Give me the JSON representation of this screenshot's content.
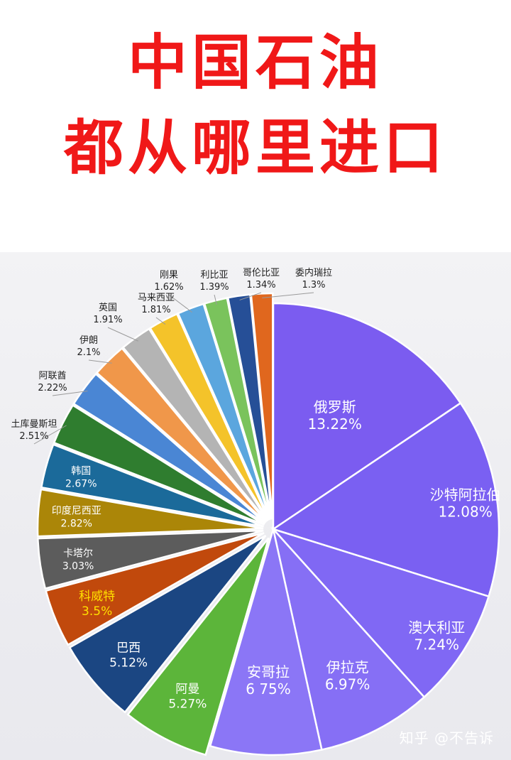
{
  "header": {
    "title_line1": "中国石油",
    "title_line2": "都从哪里进口"
  },
  "watermark": "知乎 @不告诉",
  "chart_data": {
    "type": "pie",
    "title": "中国石油都从哪里进口",
    "legend": "none",
    "slices": [
      {
        "name": "俄罗斯",
        "value": 13.22,
        "label": "13.22%",
        "color": "#7b5cf0"
      },
      {
        "name": "沙特阿拉伯",
        "value": 12.08,
        "label": "12.08%",
        "color": "#7a60f2"
      },
      {
        "name": "澳大利亚",
        "value": 7.24,
        "label": "7.24%",
        "color": "#8068f4"
      },
      {
        "name": "伊拉克",
        "value": 6.97,
        "label": "6.97%",
        "color": "#866ff5"
      },
      {
        "name": "安哥拉",
        "value": 6.75,
        "label": "6 75%",
        "color": "#8b76f6"
      },
      {
        "name": "阿曼",
        "value": 5.27,
        "label": "5.27%",
        "color": "#5cb53a"
      },
      {
        "name": "巴西",
        "value": 5.12,
        "label": "5.12%",
        "color": "#1b4682"
      },
      {
        "name": "科威特",
        "value": 3.5,
        "label": "3.5%",
        "color": "#c1490c"
      },
      {
        "name": "卡塔尔",
        "value": 3.03,
        "label": "3.03%",
        "color": "#5c5c5c"
      },
      {
        "name": "印度尼西亚",
        "value": 2.82,
        "label": "2.82%",
        "color": "#ab8608"
      },
      {
        "name": "韩国",
        "value": 2.67,
        "label": "2.67%",
        "color": "#1b6a9a"
      },
      {
        "name": "土库曼斯坦",
        "value": 2.51,
        "label": "2.51%",
        "color": "#2f7d2f"
      },
      {
        "name": "阿联酋",
        "value": 2.22,
        "label": "2.22%",
        "color": "#4a86d4"
      },
      {
        "name": "伊朗",
        "value": 2.1,
        "label": "2.1%",
        "color": "#f0974a"
      },
      {
        "name": "英国",
        "value": 1.91,
        "label": "1.91%",
        "color": "#b4b4b4"
      },
      {
        "name": "马来西亚",
        "value": 1.81,
        "label": "1.81%",
        "color": "#f4c32a"
      },
      {
        "name": "刚果",
        "value": 1.62,
        "label": "1.62%",
        "color": "#5ba6de"
      },
      {
        "name": "利比亚",
        "value": 1.39,
        "label": "1.39%",
        "color": "#7ac35c"
      },
      {
        "name": "哥伦比亚",
        "value": 1.34,
        "label": "1.34%",
        "color": "#264f97"
      },
      {
        "name": "委内瑞拉",
        "value": 1.3,
        "label": "1.3%",
        "color": "#e0671e"
      }
    ]
  }
}
